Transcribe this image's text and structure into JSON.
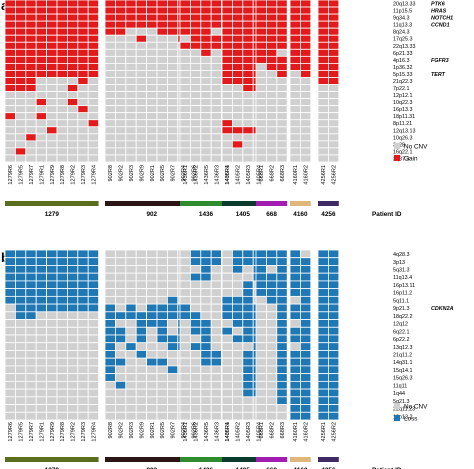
{
  "colors": {
    "none": "#d0d0d0",
    "grid": "#ffffff",
    "gain": "#e31a1c",
    "loss": "#1f78b4"
  },
  "patient_id_label": "Patient ID",
  "patients": [
    {
      "id": "1279",
      "color": "#5b6e1e",
      "samples": [
        "1279R6",
        "1279R5",
        "1279R7",
        "1279R1",
        "1279R9",
        "1279R8",
        "1279R2",
        "1279R3",
        "1279R4"
      ]
    },
    {
      "id": "902",
      "color": "#2a1414",
      "samples": [
        "902R8",
        "902R2",
        "902R3",
        "902R9",
        "902R1",
        "902R5",
        "902R7",
        "902R4",
        "902R6"
      ]
    },
    {
      "id": "1436",
      "color": "#2e8b2e",
      "samples": [
        "1436R1",
        "1436R2",
        "1436R5",
        "1436R3",
        "1436R4"
      ]
    },
    {
      "id": "1405",
      "color": "#0b3b2c",
      "samples": [
        "1405R1",
        "1405R2",
        "1405R3",
        "1405R4"
      ]
    },
    {
      "id": "668",
      "color": "#a21caf",
      "samples": [
        "668R1",
        "668R2",
        "668R3"
      ]
    },
    {
      "id": "4160",
      "color": "#e0b77a",
      "samples": [
        "4160R1",
        "4160R2"
      ]
    },
    {
      "id": "4256",
      "color": "#3f2a64",
      "samples": [
        "4256R1",
        "4256R2"
      ]
    }
  ],
  "panel_a": {
    "letter": "a",
    "legend": {
      "none": "No CNV",
      "event": "Gain"
    },
    "rows": [
      {
        "band": "20q13.33",
        "gene": "PTK6"
      },
      {
        "band": "11p15.5",
        "gene": "HRAS"
      },
      {
        "band": "9q34.3",
        "gene": "NOTCH1"
      },
      {
        "band": "11q13.3",
        "gene": "CCND1"
      },
      {
        "band": "8q24.3",
        "gene": ""
      },
      {
        "band": "17q25.3",
        "gene": ""
      },
      {
        "band": "22q13.33",
        "gene": ""
      },
      {
        "band": "6p21.33",
        "gene": ""
      },
      {
        "band": "4p16.3",
        "gene": "FGFR3"
      },
      {
        "band": "1p36.32",
        "gene": ""
      },
      {
        "band": "5p15.33",
        "gene": "TERT"
      },
      {
        "band": "21q22.3",
        "gene": ""
      },
      {
        "band": "7p22.1",
        "gene": ""
      },
      {
        "band": "12p12.1",
        "gene": ""
      },
      {
        "band": "10q22.3",
        "gene": ""
      },
      {
        "band": "16p13.3",
        "gene": ""
      },
      {
        "band": "18p11.31",
        "gene": ""
      },
      {
        "band": "8p11.21",
        "gene": ""
      },
      {
        "band": "12q13.13",
        "gene": ""
      },
      {
        "band": "10q26.3",
        "gene": ""
      },
      {
        "band": "3q28",
        "gene": ""
      },
      {
        "band": "16q22.1",
        "gene": ""
      },
      {
        "band": "2q37.3",
        "gene": ""
      }
    ],
    "matrix": [
      [
        "111111111",
        "111111111",
        "11111",
        "1111",
        "111",
        "11",
        "11"
      ],
      [
        "111111111",
        "111111111",
        "11111",
        "1111",
        "111",
        "11",
        "11"
      ],
      [
        "111111111",
        "111111111",
        "11111",
        "1111",
        "111",
        "11",
        "11"
      ],
      [
        "111111111",
        "111111111",
        "11111",
        "1111",
        "111",
        "11",
        "11"
      ],
      [
        "111111111",
        "110001110",
        "11101",
        "1111",
        "111",
        "11",
        "11"
      ],
      [
        "111111111",
        "000100010",
        "01110",
        "1111",
        "111",
        "11",
        "11"
      ],
      [
        "111111111",
        "000000000",
        "11111",
        "1111",
        "111",
        "11",
        "11"
      ],
      [
        "111111111",
        "000000000",
        "00100",
        "1111",
        "110",
        "11",
        "11"
      ],
      [
        "111111111",
        "000000000",
        "00000",
        "1111",
        "111",
        "11",
        "11"
      ],
      [
        "111111111",
        "000000000",
        "00000",
        "1111",
        "011",
        "11",
        "11"
      ],
      [
        "111111111",
        "000000000",
        "00000",
        "1111",
        "001",
        "01",
        "11"
      ],
      [
        "111000010",
        "000000000",
        "00001",
        "1111",
        "000",
        "00",
        "11"
      ],
      [
        "111000100",
        "000000000",
        "00000",
        "0011",
        "000",
        "00",
        "00"
      ],
      [
        "000000000",
        "000000000",
        "00000",
        "0000",
        "000",
        "00",
        "00"
      ],
      [
        "000100100",
        "000000000",
        "00000",
        "0000",
        "000",
        "00",
        "00"
      ],
      [
        "000000010",
        "000000000",
        "00000",
        "0000",
        "000",
        "00",
        "00"
      ],
      [
        "100100000",
        "000000000",
        "00000",
        "0000",
        "000",
        "00",
        "00"
      ],
      [
        "000000001",
        "000000000",
        "00000",
        "1000",
        "000",
        "00",
        "00"
      ],
      [
        "000010000",
        "000000000",
        "00000",
        "1111",
        "000",
        "00",
        "00"
      ],
      [
        "001000000",
        "000000000",
        "00000",
        "0000",
        "000",
        "00",
        "00"
      ],
      [
        "000000000",
        "000000000",
        "00000",
        "0100",
        "000",
        "00",
        "00"
      ],
      [
        "010000000",
        "000000000",
        "00000",
        "0000",
        "000",
        "00",
        "00"
      ],
      [
        "000000000",
        "000000000",
        "00000",
        "0000",
        "000",
        "00",
        "00"
      ]
    ]
  },
  "panel_b": {
    "letter": "b",
    "legend": {
      "none": "No CNV",
      "event": "Loss"
    },
    "rows": [
      {
        "band": "4q28.3",
        "gene": ""
      },
      {
        "band": "3p13",
        "gene": ""
      },
      {
        "band": "5q31.3",
        "gene": ""
      },
      {
        "band": "11q13.4",
        "gene": ""
      },
      {
        "band": "16p13.11",
        "gene": ""
      },
      {
        "band": "16p11.2",
        "gene": ""
      },
      {
        "band": "5q11.1",
        "gene": ""
      },
      {
        "band": "9p21.3",
        "gene": "CDKN2A"
      },
      {
        "band": "18q22.2",
        "gene": ""
      },
      {
        "band": "12q12",
        "gene": ""
      },
      {
        "band": "6q22.1",
        "gene": ""
      },
      {
        "band": "6p22.2",
        "gene": ""
      },
      {
        "band": "13q12.3",
        "gene": ""
      },
      {
        "band": "21q11.2",
        "gene": ""
      },
      {
        "band": "14q31.1",
        "gene": ""
      },
      {
        "band": "15q14.1",
        "gene": ""
      },
      {
        "band": "15q26.3",
        "gene": ""
      },
      {
        "band": "11q11",
        "gene": ""
      },
      {
        "band": "1q44",
        "gene": ""
      },
      {
        "band": "5q21.3",
        "gene": ""
      },
      {
        "band": "22q11.23",
        "gene": ""
      },
      {
        "band": "12p13.2",
        "gene": ""
      }
    ],
    "matrix": [
      [
        "111111111",
        "000000000",
        "01110",
        "0111",
        "111",
        "10",
        "11"
      ],
      [
        "111111111",
        "000000000",
        "01110",
        "0111",
        "111",
        "11",
        "11"
      ],
      [
        "111111111",
        "000000000",
        "00100",
        "0101",
        "101",
        "11",
        "11"
      ],
      [
        "111111111",
        "000000000",
        "01100",
        "0001",
        "111",
        "11",
        "11"
      ],
      [
        "111111111",
        "000000000",
        "00000",
        "0010",
        "111",
        "11",
        "11"
      ],
      [
        "111111111",
        "000000000",
        "00000",
        "0010",
        "111",
        "11",
        "11"
      ],
      [
        "111111111",
        "000000100",
        "00000",
        "1110",
        "011",
        "01",
        "11"
      ],
      [
        "011111111",
        "101011111",
        "10000",
        "1111",
        "001",
        "11",
        "11"
      ],
      [
        "011000000",
        "111111111",
        "11000",
        "1111",
        "001",
        "11",
        "11"
      ],
      [
        "000000000",
        "100111011",
        "01101",
        "0111",
        "001",
        "01",
        "11"
      ],
      [
        "000000000",
        "110101011",
        "01100",
        "1011",
        "001",
        "11",
        "11"
      ],
      [
        "000000000",
        "110101110",
        "00100",
        "0111",
        "001",
        "11",
        "11"
      ],
      [
        "000000000",
        "101000111",
        "01101",
        "0001",
        "001",
        "01",
        "11"
      ],
      [
        "000000000",
        "100100000",
        "00111",
        "0011",
        "001",
        "11",
        "11"
      ],
      [
        "000000000",
        "110011000",
        "00111",
        "0011",
        "001",
        "11",
        "11"
      ],
      [
        "000000000",
        "100000100",
        "00000",
        "0011",
        "001",
        "11",
        "11"
      ],
      [
        "000000000",
        "100000000",
        "00000",
        "0011",
        "001",
        "11",
        "11"
      ],
      [
        "000000000",
        "010000000",
        "00000",
        "0011",
        "001",
        "11",
        "11"
      ],
      [
        "000000000",
        "000000000",
        "00000",
        "0011",
        "001",
        "11",
        "11"
      ],
      [
        "000000000",
        "000000000",
        "00000",
        "0000",
        "001",
        "11",
        "11"
      ],
      [
        "000000000",
        "000000000",
        "00000",
        "0000",
        "000",
        "11",
        "11"
      ],
      [
        "000000000",
        "000000000",
        "00000",
        "0000",
        "000",
        "11",
        "11"
      ]
    ]
  }
}
